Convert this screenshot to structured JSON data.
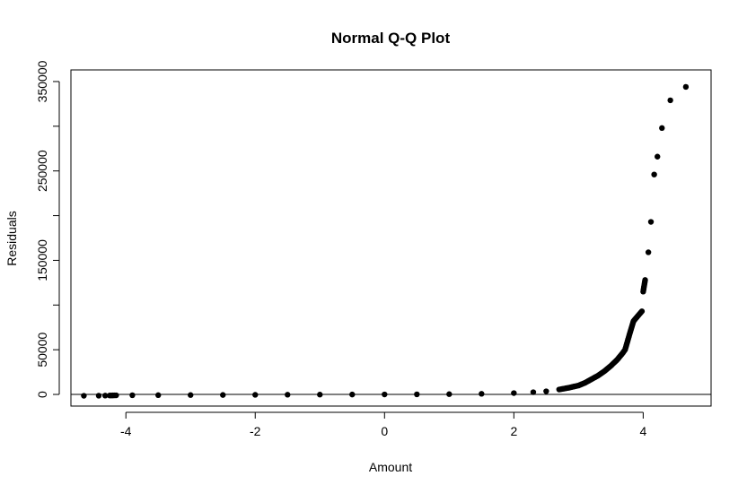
{
  "chart_data": {
    "type": "scatter",
    "title": "Normal Q-Q Plot",
    "xlabel": "Amount",
    "ylabel": "Residuals",
    "xlim": [
      -4.85,
      5.05
    ],
    "ylim": [
      -13000,
      363000
    ],
    "x_ticks": [
      -4,
      -2,
      0,
      2,
      4
    ],
    "x_tick_labels": [
      "-4",
      "-2",
      "0",
      "2",
      "4"
    ],
    "y_ticks": [
      0,
      50000,
      100000,
      150000,
      200000,
      250000,
      300000,
      350000
    ],
    "y_tick_labels": [
      "0",
      "50000",
      "",
      "150000",
      "",
      "250000",
      "",
      "350000"
    ],
    "reference_line": {
      "slope": 0,
      "intercept": 0
    },
    "grid": false,
    "legend": "none",
    "point_color": "#000000",
    "points": [
      [
        -4.65,
        -1500
      ],
      [
        -4.42,
        -1400
      ],
      [
        -4.32,
        -1300
      ],
      [
        -4.25,
        -1200
      ],
      [
        -4.2,
        -1100
      ],
      [
        -4.15,
        -1000
      ],
      [
        -3.9,
        -900
      ],
      [
        -3.5,
        -800
      ],
      [
        -3.0,
        -700
      ],
      [
        -2.5,
        -600
      ],
      [
        -2.0,
        -450
      ],
      [
        -1.5,
        -300
      ],
      [
        -1.0,
        -200
      ],
      [
        -0.5,
        -100
      ],
      [
        0.0,
        0
      ],
      [
        0.5,
        100
      ],
      [
        1.0,
        300
      ],
      [
        1.5,
        700
      ],
      [
        2.0,
        1500
      ],
      [
        2.3,
        2500
      ],
      [
        2.5,
        3500
      ],
      [
        2.7,
        5500
      ],
      [
        2.85,
        7500
      ],
      [
        3.0,
        10000
      ],
      [
        3.1,
        13000
      ],
      [
        3.2,
        17000
      ],
      [
        3.3,
        21000
      ],
      [
        3.4,
        26000
      ],
      [
        3.5,
        32000
      ],
      [
        3.6,
        39000
      ],
      [
        3.68,
        46000
      ],
      [
        3.72,
        50000
      ],
      [
        3.76,
        60000
      ],
      [
        3.8,
        70000
      ],
      [
        3.85,
        82000
      ],
      [
        3.92,
        88000
      ],
      [
        3.98,
        93000
      ],
      [
        4.0,
        115000
      ],
      [
        4.03,
        128000
      ],
      [
        4.08,
        159000
      ],
      [
        4.12,
        193000
      ],
      [
        4.17,
        246000
      ],
      [
        4.22,
        266000
      ],
      [
        4.29,
        298000
      ],
      [
        4.42,
        329000
      ],
      [
        4.66,
        344000
      ]
    ]
  }
}
